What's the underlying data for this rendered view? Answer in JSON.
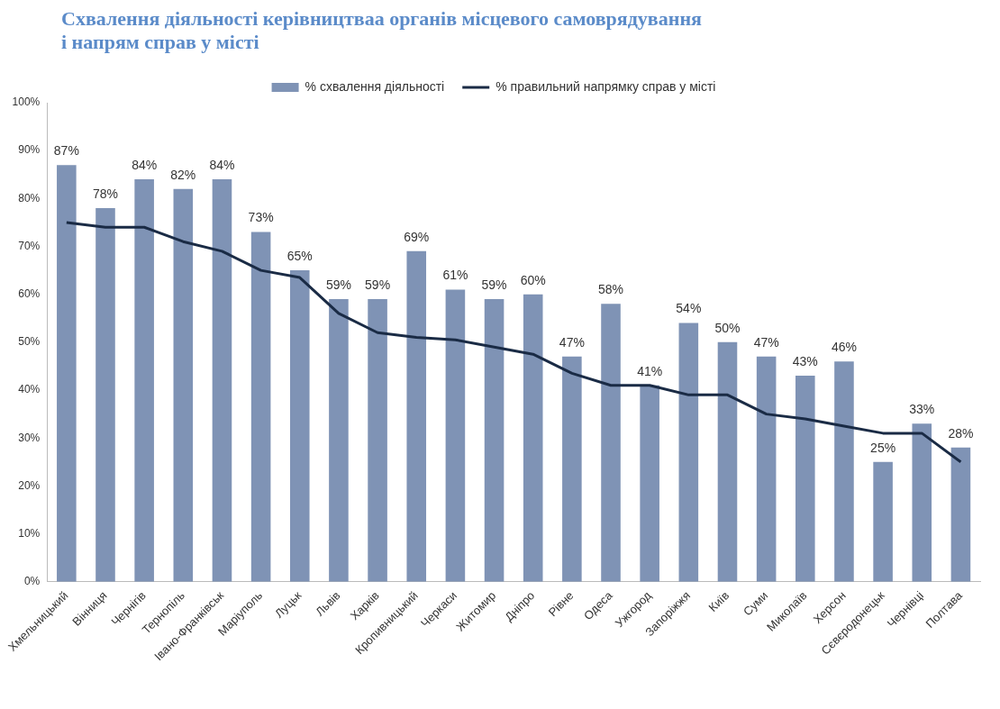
{
  "chart_data": {
    "type": "bar",
    "title": "Схвалення діяльності керівництваа органів місцевого самоврядування і напрям справ у місті",
    "categories": [
      "Хмельницький",
      "Вінниця",
      "Чернігів",
      "Тернопіль",
      "Івано-Франківськ",
      "Маріуполь",
      "Луцьк",
      "Львів",
      "Харків",
      "Кропивницький",
      "Черкаси",
      "Житомир",
      "Дніпро",
      "Рівне",
      "Одеса",
      "Ужгород",
      "Запоріжжя",
      "Київ",
      "Суми",
      "Миколаїв",
      "Херсон",
      "Сєвєродонецьк",
      "Чернівці",
      "Полтава"
    ],
    "series": [
      {
        "name": "% схвалення діяльності",
        "color": "#7f93b5",
        "values": [
          87,
          78,
          84,
          82,
          84,
          73,
          65,
          59,
          59,
          69,
          61,
          59,
          60,
          47,
          58,
          41,
          54,
          50,
          47,
          43,
          46,
          25,
          33,
          28
        ],
        "value_labels": [
          "87%",
          "78%",
          "84%",
          "82%",
          "84%",
          "73%",
          "65%",
          "59%",
          "59%",
          "69%",
          "61%",
          "59%",
          "60%",
          "47%",
          "58%",
          "41%",
          "54%",
          "50%",
          "47%",
          "43%",
          "46%",
          "25%",
          "33%",
          "28%"
        ]
      },
      {
        "name": "% правильний напрямку справ у місті",
        "type": "line",
        "color": "#1a2b45",
        "values": [
          75,
          74,
          74,
          71,
          69,
          65,
          63.5,
          56,
          52,
          51,
          50.5,
          49,
          47.5,
          43.5,
          41,
          41,
          39,
          39,
          35,
          34,
          32.5,
          31,
          31,
          25
        ]
      }
    ],
    "ylim": [
      0,
      100
    ],
    "yticks": [
      {
        "value": 0,
        "label": "0%"
      },
      {
        "value": 10,
        "label": "10%"
      },
      {
        "value": 20,
        "label": "20%"
      },
      {
        "value": 30,
        "label": "30%"
      },
      {
        "value": 40,
        "label": "40%"
      },
      {
        "value": 50,
        "label": "50%"
      },
      {
        "value": 60,
        "label": "60%"
      },
      {
        "value": 70,
        "label": "70%"
      },
      {
        "value": 80,
        "label": "80%"
      },
      {
        "value": 90,
        "label": "90%"
      },
      {
        "value": 100,
        "label": "100%"
      }
    ],
    "grid": false,
    "legend": "top",
    "marker": "none"
  }
}
